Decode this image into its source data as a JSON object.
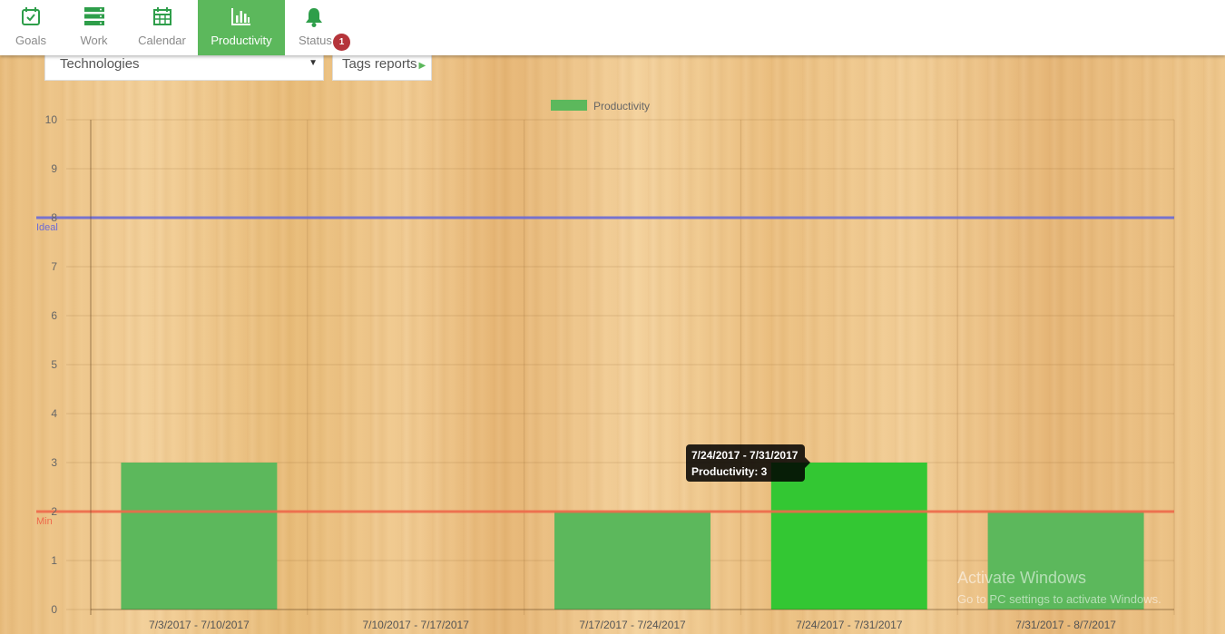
{
  "nav": {
    "items": [
      {
        "label": "Goals",
        "icon": "calendar-check-icon"
      },
      {
        "label": "Work",
        "icon": "server-icon"
      },
      {
        "label": "Calendar",
        "icon": "calendar-icon"
      },
      {
        "label": "Productivity",
        "icon": "bar-chart-icon",
        "active": true
      },
      {
        "label": "Status",
        "icon": "bell-icon"
      }
    ],
    "status_badge": "1"
  },
  "filter": {
    "selected": "Technologies",
    "tags_button": "Tags reports"
  },
  "colors": {
    "accent": "#5cb85c",
    "bar": "#5cb85c",
    "bar_highlight": "#33c733",
    "ideal_line": "#6b6bd6",
    "min_line": "#ef6a4b",
    "badge": "#b5343a"
  },
  "chart_data": {
    "type": "bar",
    "categories": [
      "7/3/2017 - 7/10/2017",
      "7/10/2017 - 7/17/2017",
      "7/17/2017 - 7/24/2017",
      "7/24/2017 - 7/31/2017",
      "7/31/2017 - 8/7/2017"
    ],
    "series": [
      {
        "name": "Productivity",
        "values": [
          3,
          0,
          2,
          3,
          2
        ]
      }
    ],
    "ylim": [
      0,
      10
    ],
    "yticks": [
      0,
      1,
      2,
      3,
      4,
      5,
      6,
      7,
      8,
      9,
      10
    ],
    "reference_lines": [
      {
        "label": "Ideal",
        "value": 8
      },
      {
        "label": "Min",
        "value": 2
      }
    ],
    "legend": "top",
    "grid": true,
    "highlighted_index": 3
  },
  "tooltip": {
    "title": "7/24/2017 - 7/31/2017",
    "body": "Productivity: 3"
  },
  "watermark": {
    "line1": "Activate Windows",
    "line2": "Go to PC settings to activate Windows."
  }
}
